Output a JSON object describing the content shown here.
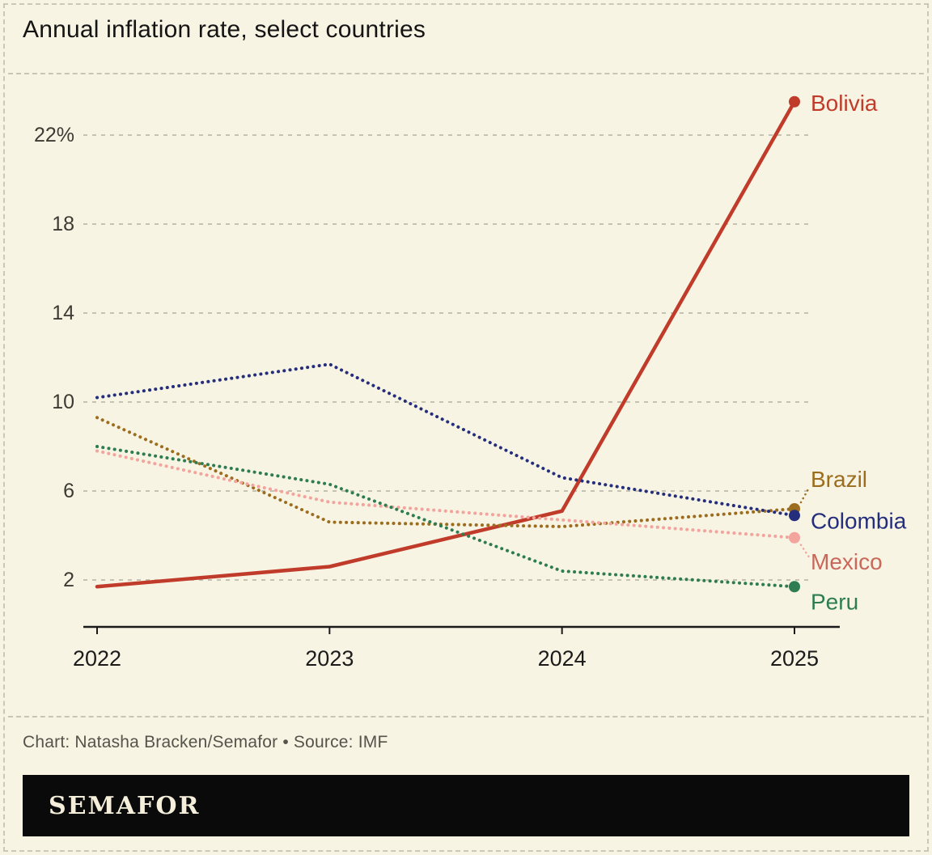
{
  "title": "Annual inflation rate, select countries",
  "credit": "Chart: Natasha Bracken/Semafor • Source: IMF",
  "brand": "SEMAFOR",
  "theme": {
    "background": "#f8f4e4",
    "grid_color": "#b5b1a2",
    "axis_color": "#1a1a1a",
    "tick_text_color": "#3c3b33",
    "x_text_color": "#1b1b1b",
    "credit_color": "#55544a",
    "brand_bar_color": "#0a0a0a",
    "brand_text_color": "#f4eedb"
  },
  "chart_data": {
    "type": "line",
    "x": [
      "2022",
      "2023",
      "2024",
      "2025"
    ],
    "series": [
      {
        "name": "Bolivia",
        "style": "solid",
        "color": "#c13b2a",
        "label_color": "#c13b2a",
        "values": [
          1.7,
          2.6,
          5.1,
          23.5
        ]
      },
      {
        "name": "Brazil",
        "style": "dotted",
        "color": "#9c6d1e",
        "label_color": "#9c6d1e",
        "values": [
          9.3,
          4.6,
          4.4,
          5.2
        ]
      },
      {
        "name": "Colombia",
        "style": "dotted",
        "color": "#242e7c",
        "label_color": "#242e7c",
        "values": [
          10.2,
          11.7,
          6.6,
          4.9
        ]
      },
      {
        "name": "Mexico",
        "style": "dotted",
        "color": "#f2a49d",
        "label_color": "#c9685a",
        "values": [
          7.8,
          5.5,
          4.7,
          3.9
        ]
      },
      {
        "name": "Peru",
        "style": "dotted",
        "color": "#2e7d52",
        "label_color": "#2e7d52",
        "values": [
          8.0,
          6.3,
          2.4,
          1.7
        ]
      }
    ],
    "yticks": [
      2,
      6,
      10,
      14,
      18,
      22
    ],
    "ytick_labels": [
      "2",
      "6",
      "10",
      "14",
      "18",
      "22%"
    ],
    "ylim": [
      0,
      24
    ],
    "grid": true,
    "legend": "end-of-line labels"
  }
}
